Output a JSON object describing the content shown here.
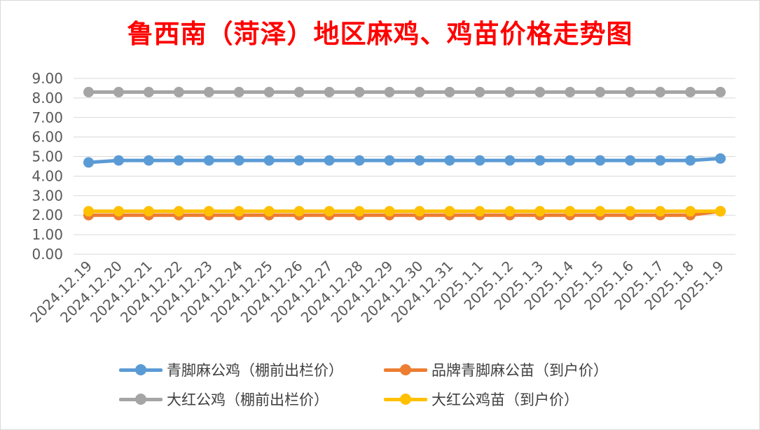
{
  "chart_data": {
    "type": "line",
    "title": "鲁西南（菏泽）地区麻鸡、鸡苗价格走势图",
    "xlabel": "",
    "ylabel": "",
    "ylim": [
      0,
      9
    ],
    "y_ticks": [
      "0.00",
      "1.00",
      "2.00",
      "3.00",
      "4.00",
      "5.00",
      "6.00",
      "7.00",
      "8.00",
      "9.00"
    ],
    "grid": true,
    "legend_position": "bottom",
    "categories": [
      "2024.12.19",
      "2024.12.20",
      "2024.12.21",
      "2024.12.22",
      "2024.12.23",
      "2024.12.24",
      "2024.12.25",
      "2024.12.26",
      "2024.12.27",
      "2024.12.28",
      "2024.12.29",
      "2024.12.30",
      "2024.12.31",
      "2025.1.1",
      "2025.1.2",
      "2025.1.3",
      "2025.1.4",
      "2025.1.5",
      "2025.1.6",
      "2025.1.7",
      "2025.1.8",
      "2025.1.9"
    ],
    "series": [
      {
        "name": "青脚麻公鸡（棚前出栏价）",
        "color": "#5b9bd5",
        "values": [
          4.7,
          4.8,
          4.8,
          4.8,
          4.8,
          4.8,
          4.8,
          4.8,
          4.8,
          4.8,
          4.8,
          4.8,
          4.8,
          4.8,
          4.8,
          4.8,
          4.8,
          4.8,
          4.8,
          4.8,
          4.8,
          4.9
        ]
      },
      {
        "name": "品牌青脚麻公苗（到户价）",
        "color": "#ed7d31",
        "values": [
          2.0,
          2.0,
          2.0,
          2.0,
          2.0,
          2.0,
          2.0,
          2.0,
          2.0,
          2.0,
          2.0,
          2.0,
          2.0,
          2.0,
          2.0,
          2.0,
          2.0,
          2.0,
          2.0,
          2.0,
          2.0,
          2.2
        ]
      },
      {
        "name": "大红公鸡（棚前出栏价）",
        "color": "#a5a5a5",
        "values": [
          8.3,
          8.3,
          8.3,
          8.3,
          8.3,
          8.3,
          8.3,
          8.3,
          8.3,
          8.3,
          8.3,
          8.3,
          8.3,
          8.3,
          8.3,
          8.3,
          8.3,
          8.3,
          8.3,
          8.3,
          8.3,
          8.3
        ]
      },
      {
        "name": "大红公鸡苗（到户价）",
        "color": "#ffc000",
        "values": [
          2.2,
          2.2,
          2.2,
          2.2,
          2.2,
          2.2,
          2.2,
          2.2,
          2.2,
          2.2,
          2.2,
          2.2,
          2.2,
          2.2,
          2.2,
          2.2,
          2.2,
          2.2,
          2.2,
          2.2,
          2.2,
          2.2
        ]
      }
    ]
  }
}
